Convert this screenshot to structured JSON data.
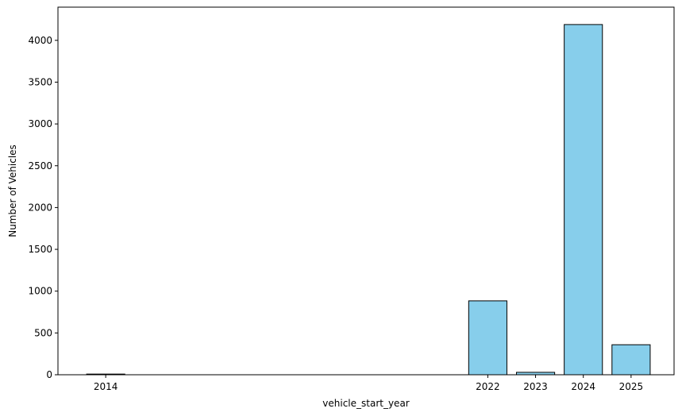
{
  "chart_data": {
    "type": "bar",
    "title": "",
    "xlabel": "vehicle_start_year",
    "ylabel": "Number of Vehicles",
    "x": [
      2014,
      2022,
      2023,
      2024,
      2025
    ],
    "values": [
      8,
      884,
      29,
      4189,
      359
    ],
    "xlim": [
      2013.0,
      2025.9
    ],
    "ylim": [
      0,
      4397
    ],
    "yticks": [
      0,
      500,
      1000,
      1500,
      2000,
      2500,
      3000,
      3500,
      4000
    ],
    "xticks": [
      2014,
      2022,
      2023,
      2024,
      2025
    ],
    "grid": false,
    "legend": "none",
    "bar_color": "#87CEEB",
    "edge_color": "#000000"
  }
}
